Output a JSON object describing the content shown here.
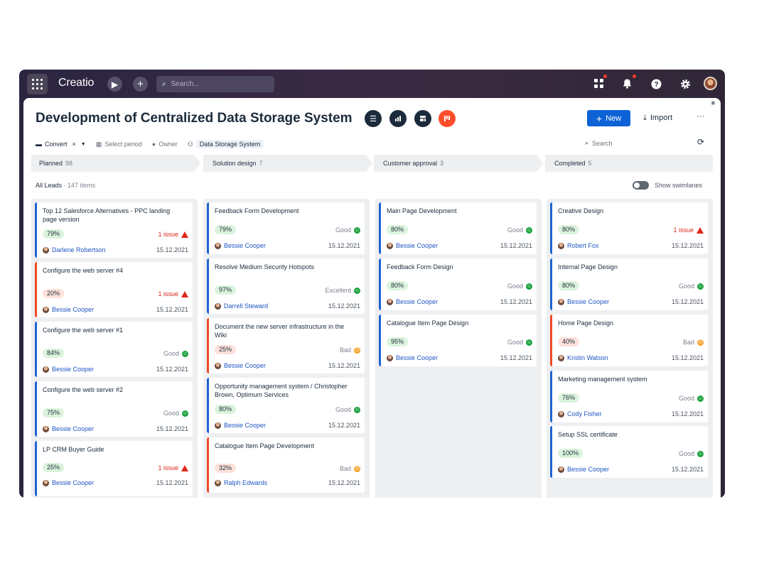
{
  "topbar": {
    "logo": "Creatio",
    "search_placeholder": "Search..."
  },
  "page": {
    "title": "Development of Centralized Data Storage System",
    "new_label": "New",
    "import_label": "Import",
    "more_label": "···"
  },
  "filters": {
    "convert": "Convert",
    "select_period": "Select period",
    "owner": "Owner",
    "folder": "Data Storage System",
    "search": "Search"
  },
  "stages": [
    {
      "name": "Planned",
      "count": "98"
    },
    {
      "name": "Solution design",
      "count": "7"
    },
    {
      "name": "Customer approval",
      "count": "3"
    },
    {
      "name": "Completed",
      "count": "5"
    }
  ],
  "list": {
    "label": "All Leads",
    "count": "147 items",
    "swimlanes": "Show swimlanes"
  },
  "columns": [
    [
      {
        "title": "Top 12 Salesforce Alternatives - PPC landing page version",
        "pct": "79%",
        "status": "1 issue",
        "owner": "Darlene Robertson",
        "date": "15.12.2021"
      },
      {
        "title": "Configure the web server #4",
        "pct": "20%",
        "status": "1 issue",
        "owner": "Bessie Cooper",
        "date": "15.12.2021"
      },
      {
        "title": "Configure the web server #1",
        "pct": "84%",
        "status": "Good",
        "owner": "Bessie Cooper",
        "date": "15.12.2021"
      },
      {
        "title": "Configure the web server #2",
        "pct": "75%",
        "status": "Good",
        "owner": "Bessie Cooper",
        "date": "15.12.2021"
      },
      {
        "title": "LP CRM Buyer Guide",
        "pct": "25%",
        "status": "1 issue",
        "owner": "Bessie Cooper",
        "date": "15.12.2021"
      }
    ],
    [
      {
        "title": "Feedback Form Development",
        "pct": "79%",
        "status": "Good",
        "owner": "Bessie Cooper",
        "date": "15.12.2021"
      },
      {
        "title": "Resolve Medium Security Hotspots",
        "pct": "97%",
        "status": "Excellent",
        "owner": "Darrell Steward",
        "date": "15.12.2021"
      },
      {
        "title": "Document the new server infrastructure in the Wiki",
        "pct": "25%",
        "status": "Bad",
        "owner": "Bessie Cooper",
        "date": "15.12.2021"
      },
      {
        "title": "Opportunity management system / Christopher Brown, Optimum Services",
        "pct": "80%",
        "status": "Good",
        "owner": "Bessie Cooper",
        "date": "15.12.2021"
      },
      {
        "title": "Catalogue Item Page Development",
        "pct": "32%",
        "status": "Bad",
        "owner": "Ralph Edwards",
        "date": "15.12.2021"
      }
    ],
    [
      {
        "title": "Main Page Development",
        "pct": "80%",
        "status": "Good",
        "owner": "Bessie Cooper",
        "date": "15.12.2021"
      },
      {
        "title": "Feedback Form Design",
        "pct": "80%",
        "status": "Good",
        "owner": "Bessie Cooper",
        "date": "15.12.2021"
      },
      {
        "title": "Catalogue Item Page Design",
        "pct": "95%",
        "status": "Good",
        "owner": "Bessie Cooper",
        "date": "15.12.2021"
      }
    ],
    [
      {
        "title": "Creative Design",
        "pct": "80%",
        "status": "1 issue",
        "owner": "Robert Fox",
        "date": "15.12.2021"
      },
      {
        "title": "Internal Page Design",
        "pct": "80%",
        "status": "Good",
        "owner": "Bessie Cooper",
        "date": "15.12.2021"
      },
      {
        "title": "Home Page Design",
        "pct": "40%",
        "status": "Bad",
        "owner": "Kristin Watson",
        "date": "15.12.2021"
      },
      {
        "title": "Marketing management system",
        "pct": "76%",
        "status": "Good",
        "owner": "Cody Fisher",
        "date": "15.12.2021"
      },
      {
        "title": "Setup SSL certificate",
        "pct": "100%",
        "status": "Good",
        "owner": "Bessie Cooper",
        "date": "15.12.2021"
      }
    ]
  ],
  "colors": {
    "accent": "#0d62d6",
    "card_border_blue": "#1f63d3",
    "card_border_red": "#ef4a25",
    "good": "#1aa13c",
    "bad": "#f49b1a",
    "issue": "#d7261a"
  }
}
